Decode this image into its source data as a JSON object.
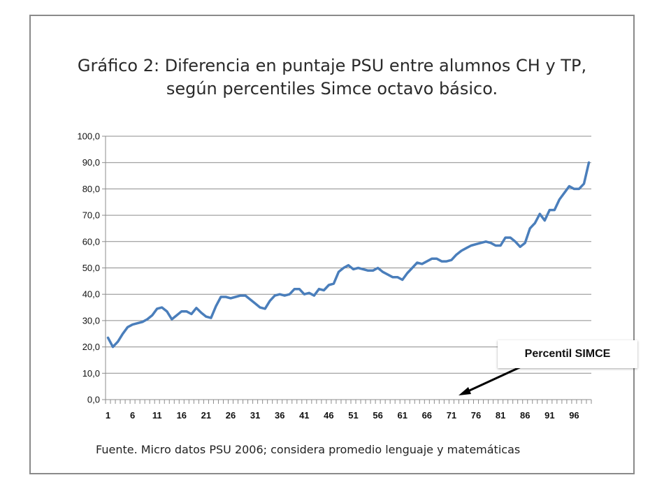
{
  "chart_data": {
    "type": "line",
    "title_lines": [
      "Gráfico 2: Diferencia en puntaje PSU entre alumnos CH y TP,",
      "según percentiles Simce octavo básico."
    ],
    "xlabel": "Percentil SIMCE",
    "ylabel": "",
    "ylim": [
      0,
      100
    ],
    "xlim": [
      1,
      99
    ],
    "y_ticks": [
      "0,0",
      "10,0",
      "20,0",
      "30,0",
      "40,0",
      "50,0",
      "60,0",
      "70,0",
      "80,0",
      "90,0",
      "100,0"
    ],
    "x_ticks": [
      1,
      6,
      11,
      16,
      21,
      26,
      31,
      36,
      41,
      46,
      51,
      56,
      61,
      66,
      71,
      76,
      81,
      86,
      91,
      96
    ],
    "grid": true,
    "series": [
      {
        "color": "#4a7ebb",
        "x": [
          1,
          2,
          3,
          4,
          5,
          6,
          7,
          8,
          9,
          10,
          11,
          12,
          13,
          14,
          15,
          16,
          17,
          18,
          19,
          20,
          21,
          22,
          23,
          24,
          25,
          26,
          27,
          28,
          29,
          30,
          31,
          32,
          33,
          34,
          35,
          36,
          37,
          38,
          39,
          40,
          41,
          42,
          43,
          44,
          45,
          46,
          47,
          48,
          49,
          50,
          51,
          52,
          53,
          54,
          55,
          56,
          57,
          58,
          59,
          60,
          61,
          62,
          63,
          64,
          65,
          66,
          67,
          68,
          69,
          70,
          71,
          72,
          73,
          74,
          75,
          76,
          77,
          78,
          79,
          80,
          81,
          82,
          83,
          84,
          85,
          86,
          87,
          88,
          89,
          90,
          91,
          92,
          93,
          94,
          95,
          96,
          97,
          98,
          99
        ],
        "values": [
          23.5,
          20.0,
          22.0,
          25.0,
          27.5,
          28.5,
          29.0,
          29.5,
          30.5,
          32.0,
          34.5,
          35.0,
          33.5,
          30.5,
          32.0,
          33.5,
          33.5,
          32.5,
          34.8,
          33.0,
          31.5,
          31.0,
          35.5,
          39.0,
          39.0,
          38.5,
          39.0,
          39.5,
          39.5,
          38.0,
          36.5,
          35.0,
          34.5,
          37.5,
          39.5,
          40.0,
          39.5,
          40.0,
          42.0,
          42.0,
          40.0,
          40.5,
          39.5,
          42.0,
          41.5,
          43.5,
          44.0,
          48.5,
          50.0,
          51.0,
          49.5,
          50.0,
          49.5,
          49.0,
          49.0,
          50.0,
          48.5,
          47.5,
          46.5,
          46.5,
          45.5,
          48.0,
          50.0,
          52.0,
          51.5,
          52.5,
          53.5,
          53.5,
          52.5,
          52.5,
          53.0,
          55.0,
          56.5,
          57.5,
          58.5,
          59.0,
          59.5,
          60.0,
          59.5,
          58.5,
          58.5,
          61.5,
          61.5,
          60.0,
          58.0,
          59.5,
          65.0,
          67.0,
          70.5,
          68.0,
          72.0,
          72.0,
          76.0,
          78.5,
          81.0,
          80.0,
          80.0,
          82.0,
          90.0
        ]
      }
    ]
  },
  "footer": {
    "source_text": "Fuente. Micro datos PSU 2006; considera promedio lenguaje y matemáticas"
  }
}
